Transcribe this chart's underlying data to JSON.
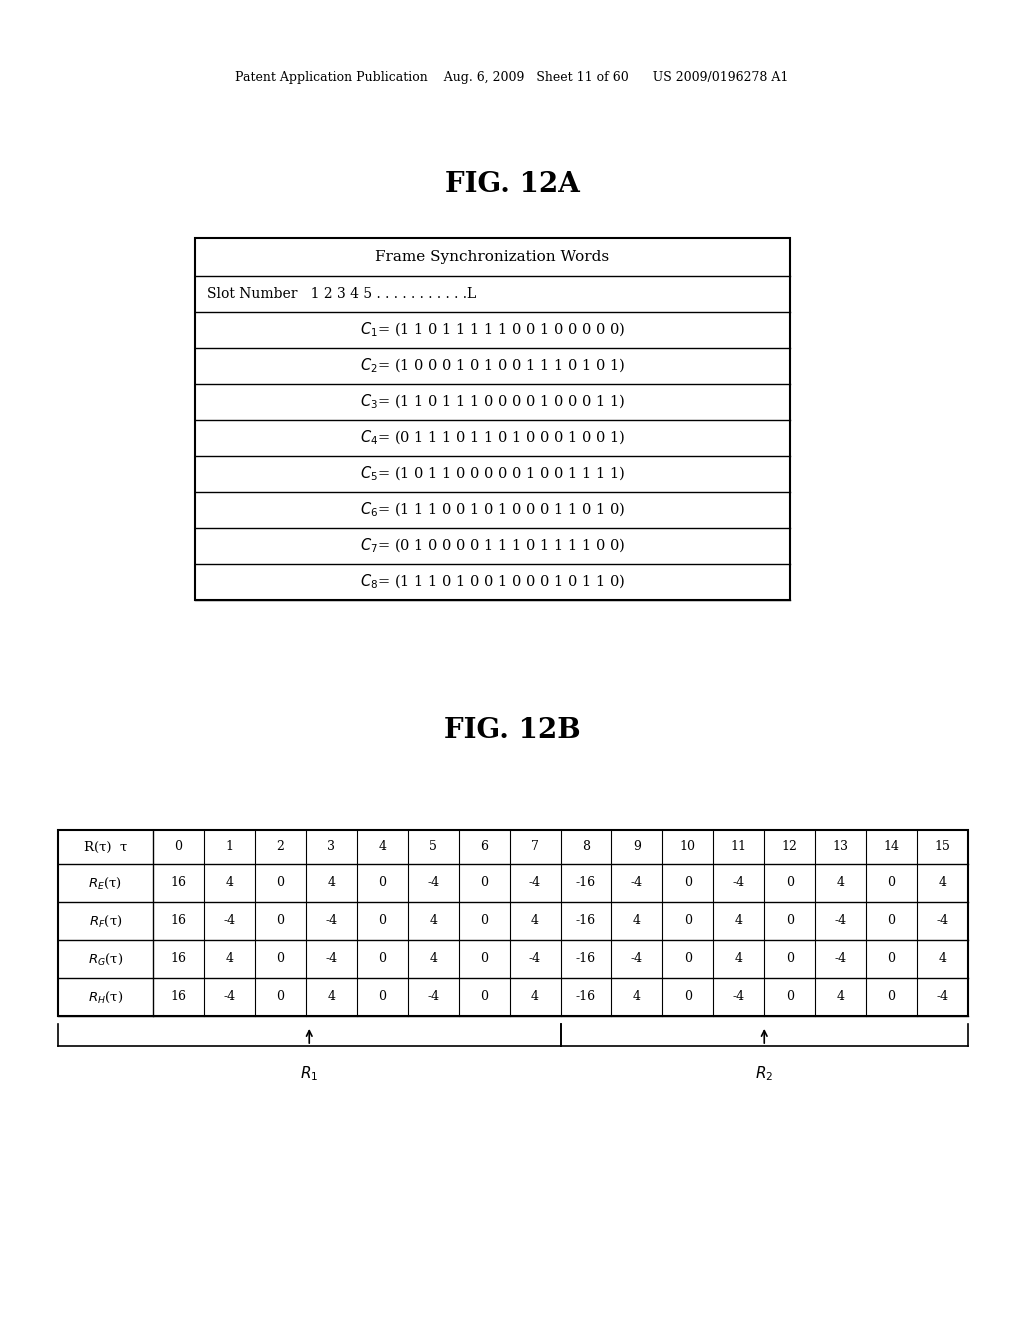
{
  "background_color": "#ffffff",
  "header_text": "Patent Application Publication    Aug. 6, 2009   Sheet 11 of 60      US 2009/0196278 A1",
  "fig12a_title": "FIG. 12A",
  "fig12b_title": "FIG. 12B",
  "table_a_header": "Frame Synchronization Words",
  "table_b_col_headers": [
    "R(τ)  τ",
    "0",
    "1",
    "2",
    "3",
    "4",
    "5",
    "6",
    "7",
    "8",
    "9",
    "10",
    "11",
    "12",
    "13",
    "14",
    "15"
  ],
  "table_b_rows_labels": [
    "$R_E$(τ)",
    "$R_F$(τ)",
    "$R_G$(τ)",
    "$R_H$(τ)"
  ],
  "table_b_rows_data": [
    [
      "16",
      "4",
      "0",
      "4",
      "0",
      "-4",
      "0",
      "-4",
      "-16",
      "-4",
      "0",
      "-4",
      "0",
      "4",
      "0",
      "4"
    ],
    [
      "16",
      "-4",
      "0",
      "-4",
      "0",
      "4",
      "0",
      "4",
      "-16",
      "4",
      "0",
      "4",
      "0",
      "-4",
      "0",
      "-4"
    ],
    [
      "16",
      "4",
      "0",
      "-4",
      "0",
      "4",
      "0",
      "-4",
      "-16",
      "-4",
      "0",
      "4",
      "0",
      "-4",
      "0",
      "4"
    ],
    [
      "16",
      "-4",
      "0",
      "4",
      "0",
      "-4",
      "0",
      "4",
      "-16",
      "4",
      "0",
      "-4",
      "0",
      "4",
      "0",
      "-4"
    ]
  ],
  "c_labels": [
    "1",
    "2",
    "3",
    "4",
    "5",
    "6",
    "7",
    "8"
  ],
  "c_contents": [
    "(1 1 0 1 1 1 1 1 0 0 1 0 0 0 0 0)",
    "(1 0 0 0 1 0 1 0 0 1 1 1 0 1 0 1)",
    "(1 1 0 1 1 1 0 0 0 0 1 0 0 0 1 1)",
    "(0 1 1 1 0 1 1 0 1 0 0 0 1 0 0 1)",
    "(1 0 1 1 0 0 0 0 0 1 0 0 1 1 1 1)",
    "(1 1 1 0 0 1 0 1 0 0 0 1 1 0 1 0)",
    "(0 1 0 0 0 0 1 1 1 0 1 1 1 1 0 0)",
    "(1 1 1 0 1 0 0 1 0 0 0 1 0 1 1 0)"
  ],
  "r1_label": "$R_1$",
  "r2_label": "$R_2$"
}
